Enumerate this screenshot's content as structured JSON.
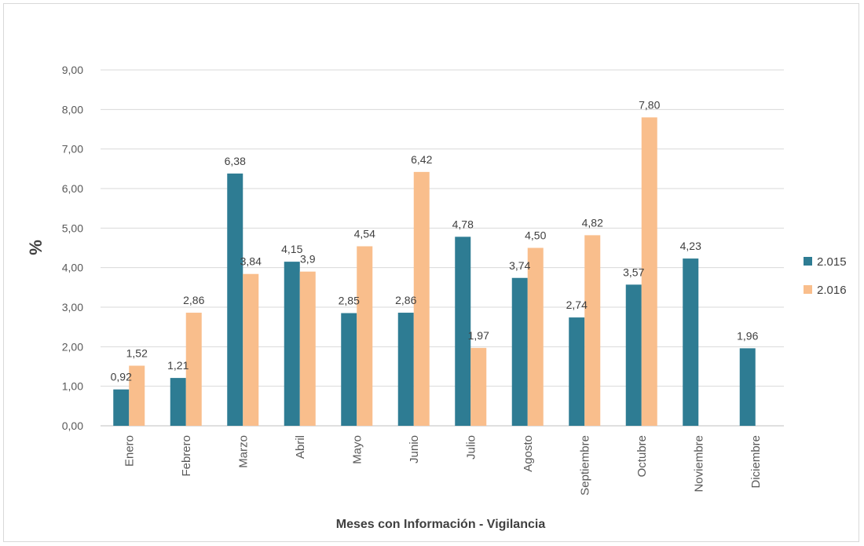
{
  "chart_data": {
    "type": "bar",
    "title": "",
    "xlabel": "Meses con Información  - Vigilancia",
    "ylabel": "%",
    "ylim": [
      0,
      9
    ],
    "yticks": [
      "0,00",
      "1,00",
      "2,00",
      "3,00",
      "4,00",
      "5,00",
      "6,00",
      "7,00",
      "8,00",
      "9,00"
    ],
    "grid": true,
    "legend_position": "right",
    "categories": [
      "Enero",
      "Febrero",
      "Marzo",
      "Abril",
      "Mayo",
      "Junio",
      "Julio",
      "Agosto",
      "Septiembre",
      "Octubre",
      "Noviembre",
      "Diciembre"
    ],
    "series": [
      {
        "name": "2.015",
        "color": "#2e7c93",
        "values": [
          0.92,
          1.21,
          6.38,
          4.15,
          2.85,
          2.86,
          4.78,
          3.74,
          2.74,
          3.57,
          4.23,
          1.96
        ],
        "labels": [
          "0,92",
          "1,21",
          "6,38",
          "4,15",
          "2,85",
          "2,86",
          "4,78",
          "3,74",
          "2,74",
          "3,57",
          "4,23",
          "1,96"
        ]
      },
      {
        "name": "2.016",
        "color": "#f9be8c",
        "values": [
          1.52,
          2.86,
          3.84,
          3.9,
          4.54,
          6.42,
          1.97,
          4.5,
          4.82,
          7.8,
          null,
          null
        ],
        "labels": [
          "1,52",
          "2,86",
          "3,84",
          "3,9",
          "4,54",
          "6,42",
          "1,97",
          "4,50",
          "4,82",
          "7,80",
          "",
          ""
        ]
      }
    ]
  }
}
